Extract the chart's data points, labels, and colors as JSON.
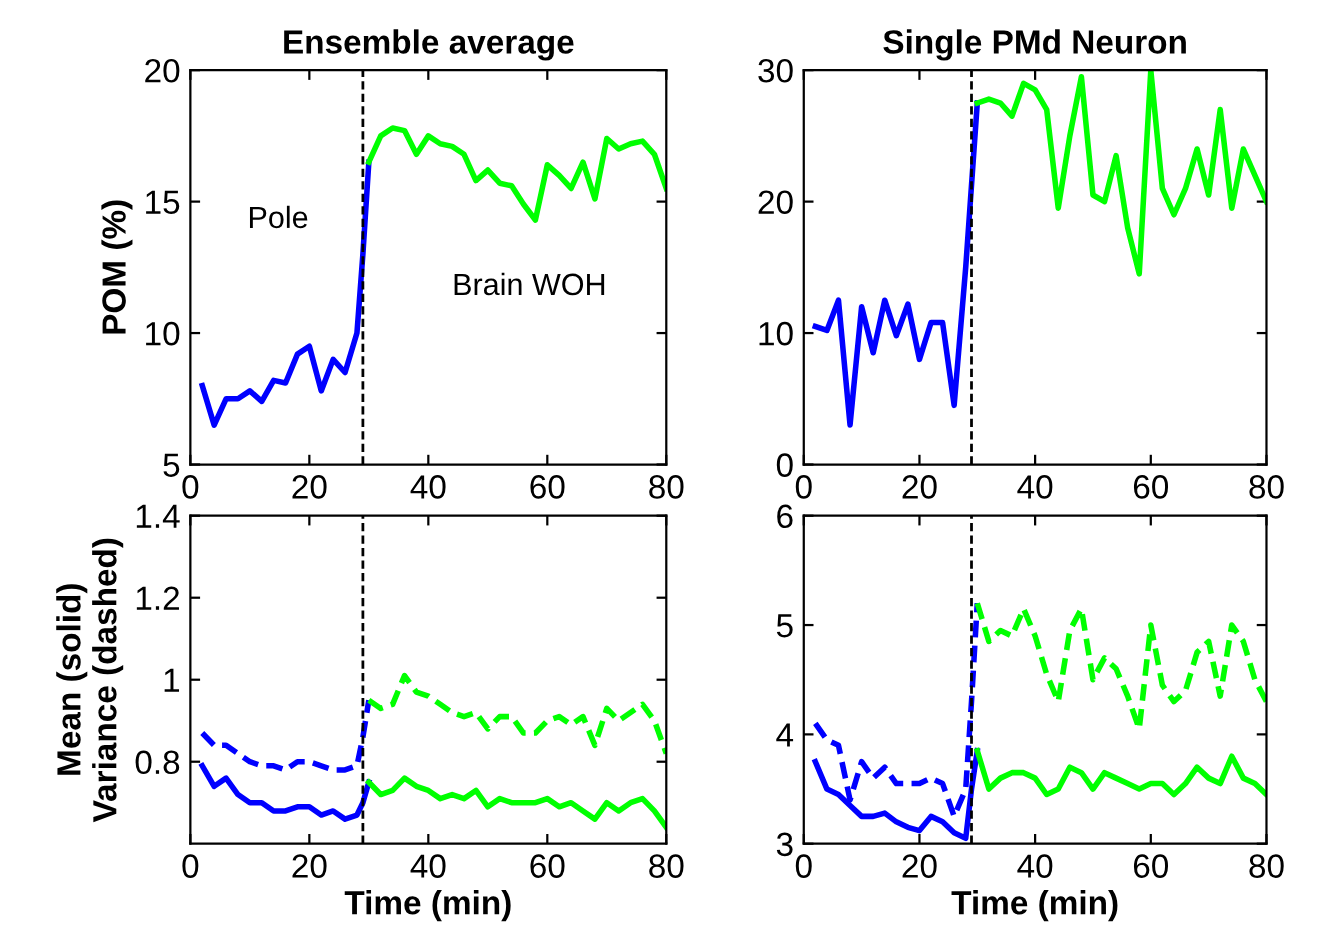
{
  "chart_data": [
    {
      "type": "line",
      "title": "Ensemble average",
      "ylabel": "POM (%)",
      "xlim": [
        0,
        80
      ],
      "xticks": [
        0,
        20,
        40,
        60,
        80
      ],
      "ylim": [
        5,
        20
      ],
      "yticks": [
        5,
        10,
        15,
        20
      ],
      "grid": false,
      "legend": false,
      "annotations": [
        "Pole",
        "Brain WOH"
      ],
      "ref_lines": [
        {
          "axis": "x",
          "value": 29,
          "color": "#000000",
          "line_style": "dashed"
        }
      ],
      "series": [
        {
          "color": "#0000ff",
          "line_style": "solid",
          "x": [
            2,
            4,
            6,
            8,
            10,
            12,
            14,
            16,
            18,
            20,
            22,
            24,
            26,
            28,
            29,
            30
          ],
          "values": [
            8,
            6.5,
            7.5,
            7.5,
            7.8,
            7.4,
            8.2,
            8.1,
            9.2,
            9.5,
            7.8,
            9.0,
            8.5,
            10.0,
            13,
            16.5
          ]
        },
        {
          "color": "#00ff00",
          "line_style": "solid",
          "x": [
            30,
            32,
            34,
            36,
            38,
            40,
            42,
            44,
            46,
            48,
            50,
            52,
            54,
            56,
            58,
            60,
            62,
            64,
            66,
            68,
            70,
            72,
            74,
            76,
            78,
            80
          ],
          "values": [
            16.5,
            17.5,
            17.8,
            17.7,
            16.8,
            17.5,
            17.2,
            17.1,
            16.8,
            15.8,
            16.2,
            15.7,
            15.6,
            14.9,
            14.3,
            16.4,
            16.0,
            15.5,
            16.5,
            15.1,
            17.4,
            17.0,
            17.2,
            17.3,
            16.8,
            15.5
          ]
        }
      ]
    },
    {
      "type": "line",
      "title": "Single PMd Neuron",
      "xlim": [
        0,
        80
      ],
      "xticks": [
        0,
        20,
        40,
        60,
        80
      ],
      "ylim": [
        0,
        30
      ],
      "yticks": [
        0,
        10,
        20,
        30
      ],
      "grid": false,
      "legend": false,
      "ref_lines": [
        {
          "axis": "x",
          "value": 29,
          "color": "#000000",
          "line_style": "dashed"
        }
      ],
      "series": [
        {
          "color": "#0000ff",
          "line_style": "solid",
          "x": [
            2,
            4,
            6,
            8,
            10,
            12,
            14,
            16,
            18,
            20,
            22,
            24,
            26,
            28,
            30
          ],
          "values": [
            10.5,
            10.2,
            12.5,
            3,
            12,
            8.5,
            12.5,
            9.8,
            12.2,
            8,
            10.8,
            10.8,
            4.5,
            15,
            27.5
          ]
        },
        {
          "color": "#00ff00",
          "line_style": "solid",
          "x": [
            30,
            32,
            34,
            36,
            38,
            40,
            42,
            44,
            46,
            48,
            50,
            52,
            54,
            56,
            58,
            60,
            62,
            64,
            66,
            68,
            70,
            72,
            74,
            76,
            78,
            80
          ],
          "values": [
            27.5,
            27.8,
            27.5,
            26.5,
            29,
            28.5,
            27,
            19.5,
            25,
            29.5,
            20.5,
            20,
            23.5,
            18,
            14.5,
            30,
            21,
            19,
            21,
            24,
            20.5,
            27,
            19.5,
            24,
            22,
            20
          ]
        }
      ]
    },
    {
      "type": "line",
      "xlabel": "Time (min)",
      "ylabel": "Mean (solid)\nVariance (dashed)",
      "xlim": [
        0,
        80
      ],
      "xticks": [
        0,
        20,
        40,
        60,
        80
      ],
      "ylim": [
        0.6,
        1.4
      ],
      "yticks": [
        0.8,
        1,
        1.2,
        1.4
      ],
      "grid": false,
      "legend": false,
      "ref_lines": [
        {
          "axis": "x",
          "value": 29,
          "color": "#000000",
          "line_style": "dashed"
        }
      ],
      "series": [
        {
          "color": "#0000ff",
          "line_style": "solid",
          "x": [
            2,
            4,
            6,
            8,
            10,
            12,
            14,
            16,
            18,
            20,
            22,
            24,
            26,
            28,
            29,
            30
          ],
          "values": [
            0.79,
            0.74,
            0.76,
            0.72,
            0.7,
            0.7,
            0.68,
            0.68,
            0.69,
            0.69,
            0.67,
            0.68,
            0.66,
            0.67,
            0.7,
            0.75
          ]
        },
        {
          "color": "#00ff00",
          "line_style": "solid",
          "x": [
            30,
            32,
            34,
            36,
            38,
            40,
            42,
            44,
            46,
            48,
            50,
            52,
            54,
            56,
            58,
            60,
            62,
            64,
            66,
            68,
            70,
            72,
            74,
            76,
            78,
            80
          ],
          "values": [
            0.75,
            0.72,
            0.73,
            0.76,
            0.74,
            0.73,
            0.71,
            0.72,
            0.71,
            0.73,
            0.69,
            0.71,
            0.7,
            0.7,
            0.7,
            0.71,
            0.69,
            0.7,
            0.68,
            0.66,
            0.7,
            0.68,
            0.7,
            0.71,
            0.68,
            0.64
          ]
        },
        {
          "color": "#0000ff",
          "line_style": "dashed",
          "x": [
            2,
            4,
            6,
            8,
            10,
            12,
            14,
            16,
            18,
            20,
            22,
            24,
            26,
            28,
            29,
            30
          ],
          "values": [
            0.87,
            0.84,
            0.84,
            0.82,
            0.8,
            0.79,
            0.79,
            0.78,
            0.8,
            0.8,
            0.79,
            0.78,
            0.78,
            0.79,
            0.86,
            0.95
          ]
        },
        {
          "color": "#00ff00",
          "line_style": "dashed",
          "x": [
            30,
            32,
            34,
            36,
            38,
            40,
            42,
            44,
            46,
            48,
            50,
            52,
            54,
            56,
            58,
            60,
            62,
            64,
            66,
            68,
            70,
            72,
            74,
            76,
            78,
            80
          ],
          "values": [
            0.95,
            0.93,
            0.94,
            1.01,
            0.97,
            0.96,
            0.94,
            0.92,
            0.91,
            0.92,
            0.88,
            0.91,
            0.91,
            0.87,
            0.87,
            0.9,
            0.91,
            0.89,
            0.91,
            0.84,
            0.93,
            0.9,
            0.92,
            0.94,
            0.9,
            0.82
          ]
        }
      ]
    },
    {
      "type": "line",
      "xlabel": "Time (min)",
      "xlim": [
        0,
        80
      ],
      "xticks": [
        0,
        20,
        40,
        60,
        80
      ],
      "ylim": [
        3,
        6
      ],
      "yticks": [
        3,
        4,
        5,
        6
      ],
      "grid": false,
      "legend": false,
      "ref_lines": [
        {
          "axis": "x",
          "value": 29,
          "color": "#000000",
          "line_style": "dashed"
        }
      ],
      "series": [
        {
          "color": "#0000ff",
          "line_style": "solid",
          "x": [
            2,
            4,
            6,
            8,
            10,
            12,
            14,
            16,
            18,
            20,
            22,
            24,
            26,
            28,
            29,
            30
          ],
          "values": [
            3.75,
            3.5,
            3.45,
            3.35,
            3.25,
            3.25,
            3.28,
            3.2,
            3.15,
            3.12,
            3.25,
            3.2,
            3.1,
            3.05,
            3.5,
            3.85
          ]
        },
        {
          "color": "#00ff00",
          "line_style": "solid",
          "x": [
            30,
            32,
            34,
            36,
            38,
            40,
            42,
            44,
            46,
            48,
            50,
            52,
            54,
            56,
            58,
            60,
            62,
            64,
            66,
            68,
            70,
            72,
            74,
            76,
            78,
            80
          ],
          "values": [
            3.85,
            3.5,
            3.6,
            3.65,
            3.65,
            3.6,
            3.45,
            3.5,
            3.7,
            3.65,
            3.5,
            3.65,
            3.6,
            3.55,
            3.5,
            3.55,
            3.55,
            3.45,
            3.55,
            3.7,
            3.6,
            3.55,
            3.8,
            3.6,
            3.55,
            3.45
          ]
        },
        {
          "color": "#0000ff",
          "line_style": "dashed",
          "x": [
            2,
            4,
            6,
            8,
            10,
            12,
            14,
            16,
            18,
            20,
            22,
            24,
            26,
            28,
            29,
            30
          ],
          "values": [
            4.1,
            3.95,
            3.9,
            3.4,
            3.75,
            3.6,
            3.7,
            3.55,
            3.55,
            3.55,
            3.6,
            3.55,
            3.25,
            3.5,
            4.3,
            5.2
          ]
        },
        {
          "color": "#00ff00",
          "line_style": "dashed",
          "x": [
            30,
            32,
            34,
            36,
            38,
            40,
            42,
            44,
            46,
            48,
            50,
            52,
            54,
            56,
            58,
            60,
            62,
            64,
            66,
            68,
            70,
            72,
            74,
            76,
            78,
            80
          ],
          "values": [
            5.2,
            4.85,
            4.95,
            4.9,
            5.15,
            4.9,
            4.55,
            4.3,
            4.95,
            5.15,
            4.5,
            4.7,
            4.6,
            4.35,
            4.05,
            5.0,
            4.45,
            4.3,
            4.4,
            4.75,
            4.85,
            4.35,
            5.0,
            4.85,
            4.5,
            4.3
          ]
        }
      ]
    }
  ]
}
